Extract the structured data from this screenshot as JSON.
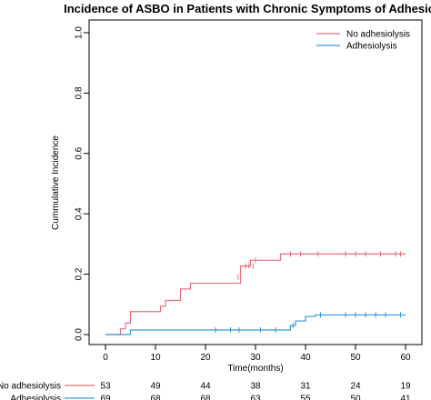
{
  "chart_data": {
    "type": "line",
    "subtype": "step (Kaplan-Meier cumulative incidence)",
    "title": "Incidence of ASBO in Patients with Chronic Symptoms of Adhesions",
    "xlabel": "Time(months)",
    "ylabel": "Cummulative Incidence",
    "xlim": [
      0,
      60
    ],
    "ylim": [
      0,
      1.0
    ],
    "xticks": [
      "0",
      "10",
      "20",
      "30",
      "40",
      "50",
      "60"
    ],
    "yticks": [
      "0.0",
      "0.2",
      "0.4",
      "0.6",
      "0.8",
      "1.0"
    ],
    "grid": false,
    "legend_position": "top-right",
    "series": [
      {
        "name": "No adhesiolysis",
        "color": "#e8707f",
        "steps": [
          [
            0,
            0
          ],
          [
            3,
            0.019
          ],
          [
            4,
            0.038
          ],
          [
            5,
            0.076
          ],
          [
            11,
            0.094
          ],
          [
            12,
            0.113
          ],
          [
            15,
            0.151
          ],
          [
            17,
            0.17
          ],
          [
            26,
            0.17
          ],
          [
            27,
            0.227
          ],
          [
            29,
            0.246
          ],
          [
            35,
            0.267
          ],
          [
            60,
            0.267
          ]
        ],
        "censored": [
          [
            26.5,
            0.19
          ],
          [
            28,
            0.227
          ],
          [
            28.7,
            0.227
          ],
          [
            29.5,
            0.227
          ],
          [
            30,
            0.246
          ],
          [
            37,
            0.267
          ],
          [
            39,
            0.267
          ],
          [
            42.5,
            0.267
          ],
          [
            48,
            0.267
          ],
          [
            50,
            0.267
          ],
          [
            52,
            0.267
          ],
          [
            55,
            0.267
          ],
          [
            58,
            0.267
          ],
          [
            59,
            0.267
          ]
        ]
      },
      {
        "name": "Adhesiolysis",
        "color": "#3a96d8",
        "steps": [
          [
            0,
            0
          ],
          [
            5,
            0.015
          ],
          [
            37,
            0.03
          ],
          [
            38,
            0.045
          ],
          [
            40,
            0.06
          ],
          [
            42,
            0.065
          ],
          [
            60,
            0.065
          ]
        ],
        "censored": [
          [
            22,
            0.015
          ],
          [
            25,
            0.015
          ],
          [
            26.7,
            0.015
          ],
          [
            31,
            0.015
          ],
          [
            34,
            0.015
          ],
          [
            37.5,
            0.03
          ],
          [
            43,
            0.065
          ],
          [
            48,
            0.065
          ],
          [
            50,
            0.065
          ],
          [
            52,
            0.065
          ],
          [
            54,
            0.065
          ],
          [
            56,
            0.065
          ],
          [
            59,
            0.065
          ]
        ]
      }
    ],
    "risk_table": {
      "times": [
        0,
        10,
        20,
        30,
        40,
        50,
        60
      ],
      "rows": [
        {
          "label": "No adhesiolysis",
          "color": "#e8707f",
          "values": [
            "53",
            "49",
            "44",
            "38",
            "31",
            "24",
            "19"
          ]
        },
        {
          "label": "Adhesiolysis",
          "color": "#3a96d8",
          "values": [
            "69",
            "68",
            "68",
            "63",
            "55",
            "50",
            "41"
          ]
        }
      ]
    }
  }
}
